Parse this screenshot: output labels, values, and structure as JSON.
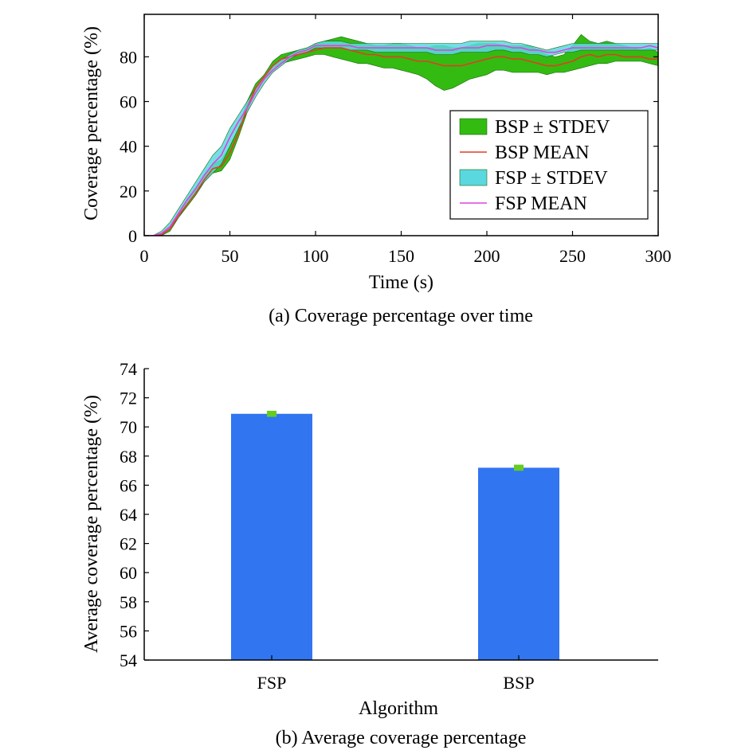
{
  "chart_data": [
    {
      "type": "area",
      "caption": "(a) Coverage percentage over time",
      "xlabel": "Time (s)",
      "ylabel": "Coverage percentage (%)",
      "xlim": [
        0,
        300
      ],
      "ylim": [
        0,
        99
      ],
      "xticks": [
        0,
        50,
        100,
        150,
        200,
        250,
        300
      ],
      "yticks": [
        0,
        20,
        40,
        60,
        80
      ],
      "grid": false,
      "legend_position": "center-right",
      "x": [
        0,
        5,
        10,
        15,
        20,
        25,
        30,
        35,
        40,
        45,
        50,
        55,
        60,
        65,
        70,
        75,
        80,
        85,
        90,
        95,
        100,
        105,
        110,
        115,
        120,
        125,
        130,
        135,
        140,
        145,
        150,
        155,
        160,
        165,
        170,
        175,
        180,
        185,
        190,
        195,
        200,
        205,
        210,
        215,
        220,
        225,
        230,
        235,
        240,
        245,
        250,
        255,
        260,
        265,
        270,
        275,
        280,
        285,
        290,
        295,
        300
      ],
      "series": [
        {
          "name": "BSP ± STDEV",
          "kind": "band",
          "color": "#33bb11",
          "lower": [
            0,
            0,
            0,
            2,
            8,
            13,
            18,
            24,
            28,
            29,
            34,
            44,
            55,
            65,
            70,
            75,
            77,
            78,
            79,
            80,
            81,
            81,
            80,
            79,
            78,
            77,
            77,
            76,
            75,
            75,
            74,
            73,
            72,
            70,
            67,
            65,
            66,
            68,
            70,
            71,
            72,
            74,
            74,
            73,
            73,
            73,
            73,
            72,
            73,
            73,
            74,
            75,
            76,
            77,
            77,
            78,
            78,
            78,
            78,
            77,
            76
          ],
          "upper": [
            0,
            0,
            1,
            4,
            10,
            15,
            21,
            27,
            32,
            34,
            40,
            48,
            60,
            68,
            72,
            78,
            81,
            82,
            83,
            84,
            86,
            87,
            88,
            89,
            88,
            87,
            86,
            85,
            85,
            86,
            86,
            85,
            84,
            84,
            85,
            85,
            84,
            84,
            85,
            86,
            86,
            86,
            85,
            85,
            85,
            85,
            83,
            81,
            80,
            81,
            85,
            90,
            87,
            86,
            87,
            86,
            85,
            84,
            83,
            84,
            82
          ]
        },
        {
          "name": "BSP MEAN",
          "kind": "line",
          "color": "#e23d27",
          "values": [
            0,
            0,
            0.5,
            3,
            9,
            14,
            19,
            25,
            30,
            31,
            37,
            46,
            57,
            66,
            71,
            76,
            79,
            80,
            81,
            82,
            83,
            84,
            84,
            84,
            83,
            82,
            81,
            81,
            80,
            80,
            80,
            79,
            78,
            78,
            77,
            76,
            76,
            76,
            77,
            78,
            79,
            80,
            80,
            79,
            79,
            78,
            77,
            76,
            76,
            77,
            78,
            80,
            81,
            80,
            81,
            81,
            80,
            80,
            80,
            79,
            79
          ]
        },
        {
          "name": "FSP ± STDEV",
          "kind": "band",
          "color": "#5ad8e0",
          "lower": [
            0,
            0,
            0,
            3,
            8,
            14,
            19,
            24,
            28,
            32,
            40,
            48,
            55,
            62,
            68,
            73,
            76,
            79,
            81,
            82,
            84,
            84,
            84,
            84,
            83,
            83,
            83,
            82,
            82,
            82,
            82,
            82,
            82,
            82,
            81,
            81,
            81,
            82,
            82,
            82,
            82,
            83,
            83,
            82,
            82,
            81,
            81,
            80,
            81,
            82,
            82,
            83,
            83,
            83,
            83,
            83,
            83,
            83,
            83,
            83,
            83
          ],
          "upper": [
            0,
            0,
            2,
            6,
            12,
            18,
            24,
            30,
            36,
            40,
            48,
            54,
            60,
            66,
            71,
            76,
            79,
            81,
            83,
            84,
            86,
            87,
            87,
            87,
            86,
            86,
            86,
            86,
            86,
            86,
            86,
            86,
            86,
            86,
            86,
            86,
            86,
            86,
            87,
            87,
            87,
            87,
            87,
            86,
            86,
            85,
            84,
            83,
            84,
            85,
            86,
            86,
            86,
            86,
            86,
            86,
            86,
            86,
            86,
            86,
            86
          ]
        },
        {
          "name": "FSP MEAN",
          "kind": "line",
          "color": "#dd44dd",
          "values": [
            0,
            0,
            1,
            4,
            10,
            16,
            21,
            27,
            32,
            36,
            44,
            51,
            57,
            64,
            70,
            74,
            77,
            80,
            82,
            83,
            85,
            85,
            85,
            85,
            85,
            84,
            84,
            84,
            84,
            84,
            84,
            84,
            84,
            84,
            83,
            83,
            83,
            84,
            84,
            84,
            85,
            85,
            85,
            84,
            84,
            83,
            83,
            82,
            82,
            83,
            84,
            84,
            84,
            84,
            84,
            84,
            84,
            84,
            84,
            85,
            84
          ]
        }
      ]
    },
    {
      "type": "bar",
      "caption": "(b) Average coverage percentage",
      "xlabel": "Algorithm",
      "ylabel": "Average coverage percentage (%)",
      "ylim": [
        54,
        74
      ],
      "yticks": [
        54,
        56,
        58,
        60,
        62,
        64,
        66,
        68,
        70,
        72,
        74
      ],
      "categories": [
        "FSP",
        "BSP"
      ],
      "values": [
        70.9,
        67.2
      ],
      "errors": [
        0.1,
        0.1
      ],
      "bar_color": "#3175f0",
      "error_color": "#66cc22",
      "grid": false
    }
  ]
}
